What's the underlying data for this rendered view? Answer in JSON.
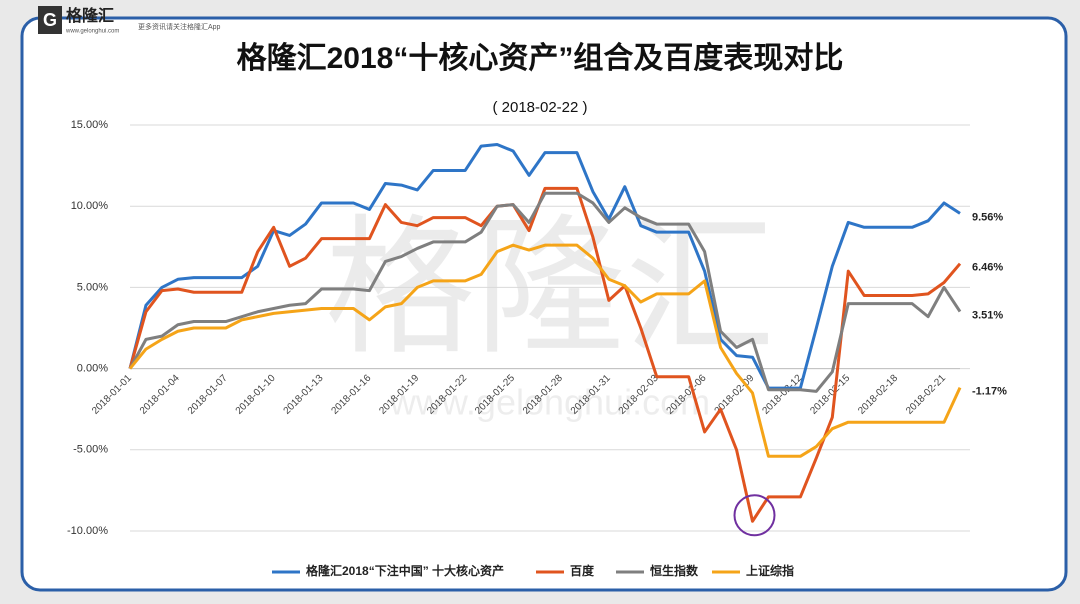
{
  "brand": {
    "logo": "格隆汇",
    "slogan": "更多资讯请关注格隆汇App",
    "site": "www.gelonghui.com"
  },
  "chart_data": {
    "type": "line",
    "title": "格隆汇2018“十核心资产”组合及百度表现对比",
    "subtitle": "( 2018-02-22 )",
    "watermark": "格隆汇",
    "watermark_site": "www.gelonghui.com",
    "categories": [
      "2018-01-01",
      null,
      null,
      "2018-01-04",
      null,
      null,
      "2018-01-07",
      null,
      null,
      "2018-01-10",
      null,
      null,
      "2018-01-13",
      null,
      null,
      "2018-01-16",
      null,
      null,
      "2018-01-19",
      null,
      null,
      "2018-01-22",
      null,
      null,
      "2018-01-25",
      null,
      null,
      "2018-01-28",
      null,
      null,
      "2018-01-31",
      null,
      null,
      "2018-02-03",
      null,
      null,
      "2018-02-06",
      null,
      null,
      "2018-02-09",
      null,
      null,
      "2018-02-12",
      null,
      null,
      "2018-02-15",
      null,
      null,
      "2018-02-18",
      null,
      null,
      "2018-02-21",
      null
    ],
    "ylim": [
      -10,
      15
    ],
    "yticks": [
      {
        "value": -10,
        "label": "-10.00%"
      },
      {
        "value": -5,
        "label": "-5.00%"
      },
      {
        "value": 0,
        "label": "0.00%"
      },
      {
        "value": 5,
        "label": "5.00%"
      },
      {
        "value": 10,
        "label": "10.00%"
      },
      {
        "value": 15,
        "label": "15.00%"
      }
    ],
    "grid": true,
    "legend": "bottom",
    "series": [
      {
        "name": "格隆汇2018“下注中国” 十大核心资产",
        "color": "#2e75c7",
        "values": [
          0,
          3.9,
          5.0,
          5.5,
          5.6,
          5.6,
          5.6,
          5.6,
          6.3,
          8.5,
          8.2,
          8.9,
          10.2,
          10.2,
          10.2,
          9.8,
          11.4,
          11.3,
          11.0,
          12.2,
          12.2,
          12.2,
          13.7,
          13.8,
          13.4,
          11.9,
          13.3,
          13.3,
          13.3,
          10.9,
          9.2,
          11.2,
          8.8,
          8.4,
          8.4,
          8.4,
          6.0,
          1.8,
          0.8,
          0.7,
          -1.2,
          -1.2,
          -1.2,
          2.5,
          6.3,
          9.0,
          8.7,
          8.7,
          8.7,
          8.7,
          9.1,
          10.2,
          9.56
        ],
        "value_labels": [
          null,
          null,
          null,
          null,
          null,
          null,
          null,
          null,
          null,
          null,
          null,
          null,
          null,
          null,
          null,
          null,
          null,
          null,
          null,
          null,
          null,
          null,
          null,
          null,
          null,
          null,
          null,
          null,
          null,
          null,
          null,
          null,
          null,
          null,
          null,
          null,
          null,
          null,
          null,
          null,
          null,
          null,
          null,
          null,
          null,
          null,
          null,
          null,
          null,
          null,
          null,
          null,
          "9.56%"
        ]
      },
      {
        "name": "百度",
        "color": "#e0541f",
        "values": [
          0,
          3.5,
          4.8,
          4.9,
          4.7,
          4.7,
          4.7,
          4.7,
          7.2,
          8.7,
          6.3,
          6.8,
          8.0,
          8.0,
          8.0,
          8.0,
          10.1,
          9.0,
          8.8,
          9.3,
          9.3,
          9.3,
          8.8,
          10.0,
          10.1,
          8.5,
          11.1,
          11.1,
          11.1,
          8.1,
          4.2,
          5.1,
          2.5,
          -0.5,
          -0.5,
          -0.5,
          -3.9,
          -2.5,
          -5.0,
          -9.4,
          -7.9,
          -7.9,
          -7.9,
          -5.5,
          -3.0,
          6.0,
          4.5,
          4.5,
          4.5,
          4.5,
          4.6,
          5.3,
          6.46
        ],
        "value_labels": [
          null,
          null,
          null,
          null,
          null,
          null,
          null,
          null,
          null,
          null,
          null,
          null,
          null,
          null,
          null,
          null,
          null,
          null,
          null,
          null,
          null,
          null,
          null,
          null,
          null,
          null,
          null,
          null,
          null,
          null,
          null,
          null,
          null,
          null,
          null,
          null,
          null,
          null,
          null,
          null,
          null,
          null,
          null,
          null,
          null,
          null,
          null,
          null,
          null,
          null,
          null,
          null,
          "6.46%"
        ]
      },
      {
        "name": "恒生指数",
        "color": "#7f7f7f",
        "values": [
          0,
          1.8,
          2.0,
          2.7,
          2.9,
          2.9,
          2.9,
          3.2,
          3.5,
          3.7,
          3.9,
          4.0,
          4.9,
          4.9,
          4.9,
          4.8,
          6.6,
          6.9,
          7.4,
          7.8,
          7.8,
          7.8,
          8.4,
          10.0,
          10.1,
          9.0,
          10.8,
          10.8,
          10.8,
          10.2,
          9.0,
          9.9,
          9.3,
          8.9,
          8.9,
          8.9,
          7.2,
          2.3,
          1.3,
          1.8,
          -1.3,
          -1.3,
          -1.3,
          -1.4,
          -0.2,
          4.0,
          4.0,
          4.0,
          4.0,
          4.0,
          3.2,
          5.0,
          3.51
        ],
        "value_labels": [
          null,
          null,
          null,
          null,
          null,
          null,
          null,
          null,
          null,
          null,
          null,
          null,
          null,
          null,
          null,
          null,
          null,
          null,
          null,
          null,
          null,
          null,
          null,
          null,
          null,
          null,
          null,
          null,
          null,
          null,
          null,
          null,
          null,
          null,
          null,
          null,
          null,
          null,
          null,
          null,
          null,
          null,
          null,
          null,
          null,
          null,
          null,
          null,
          null,
          null,
          null,
          null,
          "3.51%"
        ]
      },
      {
        "name": "上证综指",
        "color": "#f5a418",
        "values": [
          0,
          1.2,
          1.8,
          2.3,
          2.5,
          2.5,
          2.5,
          3.0,
          3.2,
          3.4,
          3.5,
          3.6,
          3.7,
          3.7,
          3.7,
          3.0,
          3.8,
          4.0,
          5.0,
          5.4,
          5.4,
          5.4,
          5.8,
          7.2,
          7.6,
          7.3,
          7.6,
          7.6,
          7.6,
          6.8,
          5.5,
          5.1,
          4.1,
          4.6,
          4.6,
          4.6,
          5.4,
          1.3,
          -0.3,
          -1.5,
          -5.4,
          -5.4,
          -5.4,
          -4.8,
          -3.7,
          -3.3,
          -3.3,
          -3.3,
          -3.3,
          -3.3,
          -3.3,
          -3.3,
          -1.17
        ],
        "value_labels": [
          null,
          null,
          null,
          null,
          null,
          null,
          null,
          null,
          null,
          null,
          null,
          null,
          null,
          null,
          null,
          null,
          null,
          null,
          null,
          null,
          null,
          null,
          null,
          null,
          null,
          null,
          null,
          null,
          null,
          null,
          null,
          null,
          null,
          null,
          null,
          null,
          null,
          null,
          null,
          null,
          null,
          null,
          null,
          null,
          null,
          null,
          null,
          null,
          null,
          null,
          null,
          null,
          "-1.17%"
        ]
      }
    ]
  }
}
